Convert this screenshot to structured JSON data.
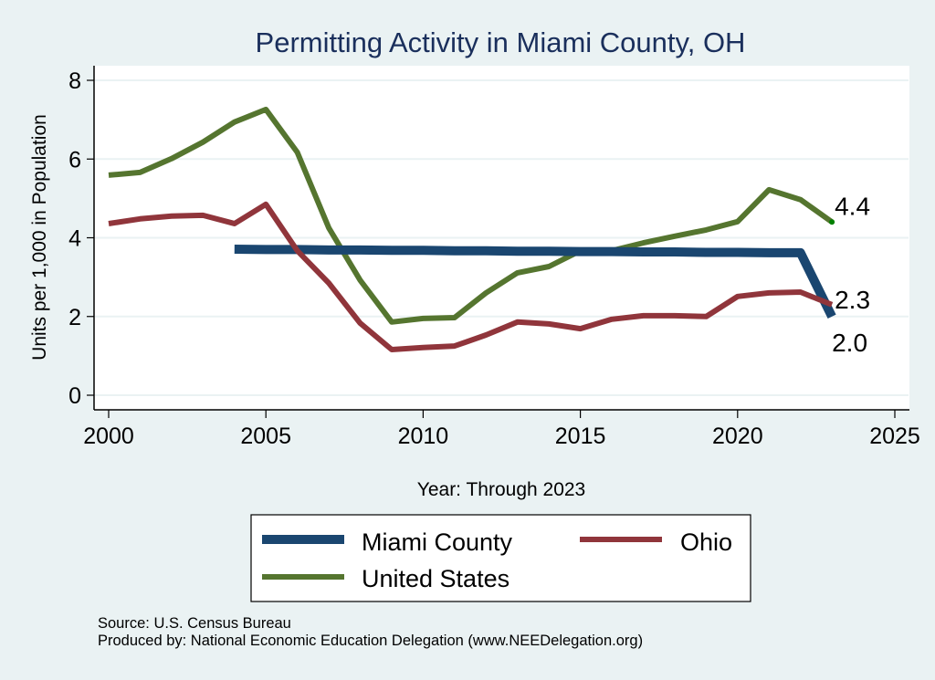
{
  "chart_data": {
    "type": "line",
    "title": "Permitting Activity in Miami County, OH",
    "xlabel": "Year: Through 2023",
    "ylabel": "Units per 1,000 in Population",
    "xlim": [
      2000,
      2025
    ],
    "ylim": [
      0,
      8
    ],
    "xticks": [
      2000,
      2005,
      2010,
      2015,
      2020,
      2025
    ],
    "yticks": [
      0,
      2,
      4,
      6,
      8
    ],
    "grid": true,
    "legend_position": "bottom",
    "series": [
      {
        "name": "Miami County",
        "color": "#1a4670",
        "x": [
          2004,
          2005,
          2006,
          2007,
          2008,
          2009,
          2010,
          2011,
          2012,
          2013,
          2014,
          2015,
          2016,
          2017,
          2018,
          2019,
          2020,
          2021,
          2022,
          2023
        ],
        "values": [
          3.71,
          3.7,
          3.7,
          3.69,
          3.69,
          3.68,
          3.68,
          3.67,
          3.67,
          3.66,
          3.66,
          3.65,
          3.65,
          3.64,
          3.64,
          3.63,
          3.63,
          3.62,
          3.62,
          2.0
        ],
        "end_label": "2.0"
      },
      {
        "name": "Ohio",
        "color": "#90353b",
        "x": [
          2000,
          2001,
          2002,
          2003,
          2004,
          2005,
          2006,
          2007,
          2008,
          2009,
          2010,
          2011,
          2012,
          2013,
          2014,
          2015,
          2016,
          2017,
          2018,
          2019,
          2020,
          2021,
          2022,
          2023
        ],
        "values": [
          4.36,
          4.48,
          4.55,
          4.57,
          4.36,
          4.85,
          3.67,
          2.85,
          1.83,
          1.16,
          1.21,
          1.25,
          1.53,
          1.86,
          1.81,
          1.69,
          1.93,
          2.02,
          2.02,
          2.0,
          2.51,
          2.6,
          2.62,
          2.3
        ],
        "end_label": "2.3"
      },
      {
        "name": "United States",
        "color": "#55752f",
        "x": [
          2000,
          2001,
          2002,
          2003,
          2004,
          2005,
          2006,
          2007,
          2008,
          2009,
          2010,
          2011,
          2012,
          2013,
          2014,
          2015,
          2016,
          2017,
          2018,
          2019,
          2020,
          2021,
          2022,
          2023
        ],
        "values": [
          5.59,
          5.66,
          6.01,
          6.43,
          6.94,
          7.26,
          6.17,
          4.25,
          2.92,
          1.86,
          1.95,
          1.97,
          2.6,
          3.11,
          3.27,
          3.67,
          3.67,
          3.87,
          4.04,
          4.2,
          4.41,
          5.22,
          4.97,
          4.4
        ],
        "end_label": "4.4"
      }
    ],
    "notes": [
      "Source: U.S. Census Bureau",
      "Produced by: National Economic Education Delegation (www.NEEDelegation.org)"
    ]
  },
  "colors": {
    "background": "#eaf2f3",
    "plot_background": "#ffffff",
    "gridline": "#eaf2f3",
    "title": "#1a2f5c",
    "end_marker": "#008000"
  }
}
